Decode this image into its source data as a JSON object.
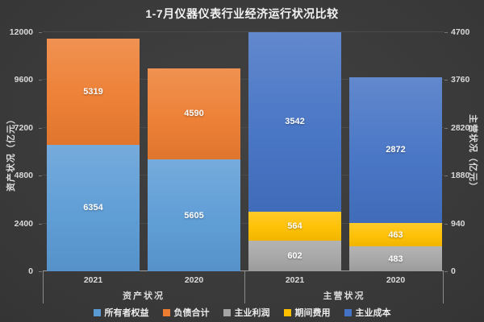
{
  "title": "1-7月仪器仪表行业经济运行状况比较",
  "chart_data": {
    "type": "bar",
    "stacked": true,
    "grid": true,
    "legend_position": "bottom",
    "left_axis": {
      "title": "资产状况（亿元）",
      "ticks": [
        0,
        2400,
        4800,
        7200,
        9600,
        12000
      ],
      "max": 12000
    },
    "right_axis": {
      "title": "主营状况（亿元）",
      "ticks": [
        0,
        940,
        1880,
        2820,
        3760,
        4700
      ],
      "max": 4700
    },
    "groups": [
      {
        "label": "资产状况",
        "axis": "left",
        "bars": [
          {
            "category": "2021",
            "segments": [
              {
                "name": "所有者权益",
                "value": 6354
              },
              {
                "name": "负债合计",
                "value": 5319
              }
            ]
          },
          {
            "category": "2020",
            "segments": [
              {
                "name": "所有者权益",
                "value": 5605
              },
              {
                "name": "负债合计",
                "value": 4590
              }
            ]
          }
        ]
      },
      {
        "label": "主营状况",
        "axis": "right",
        "bars": [
          {
            "category": "2021",
            "segments": [
              {
                "name": "主业利润",
                "value": 602
              },
              {
                "name": "期间费用",
                "value": 564
              },
              {
                "name": "主业成本",
                "value": 3542
              }
            ]
          },
          {
            "category": "2020",
            "segments": [
              {
                "name": "主业利润",
                "value": 483
              },
              {
                "name": "期间费用",
                "value": 463
              },
              {
                "name": "主业成本",
                "value": 2872
              }
            ]
          }
        ]
      }
    ],
    "legend": [
      {
        "label": "所有者权益",
        "color": "#5B9BD5"
      },
      {
        "label": "负债合计",
        "color": "#ED7D31"
      },
      {
        "label": "主业利润",
        "color": "#A5A5A5"
      },
      {
        "label": "期间费用",
        "color": "#FFC000"
      },
      {
        "label": "主业成本",
        "color": "#4472C4"
      }
    ]
  }
}
